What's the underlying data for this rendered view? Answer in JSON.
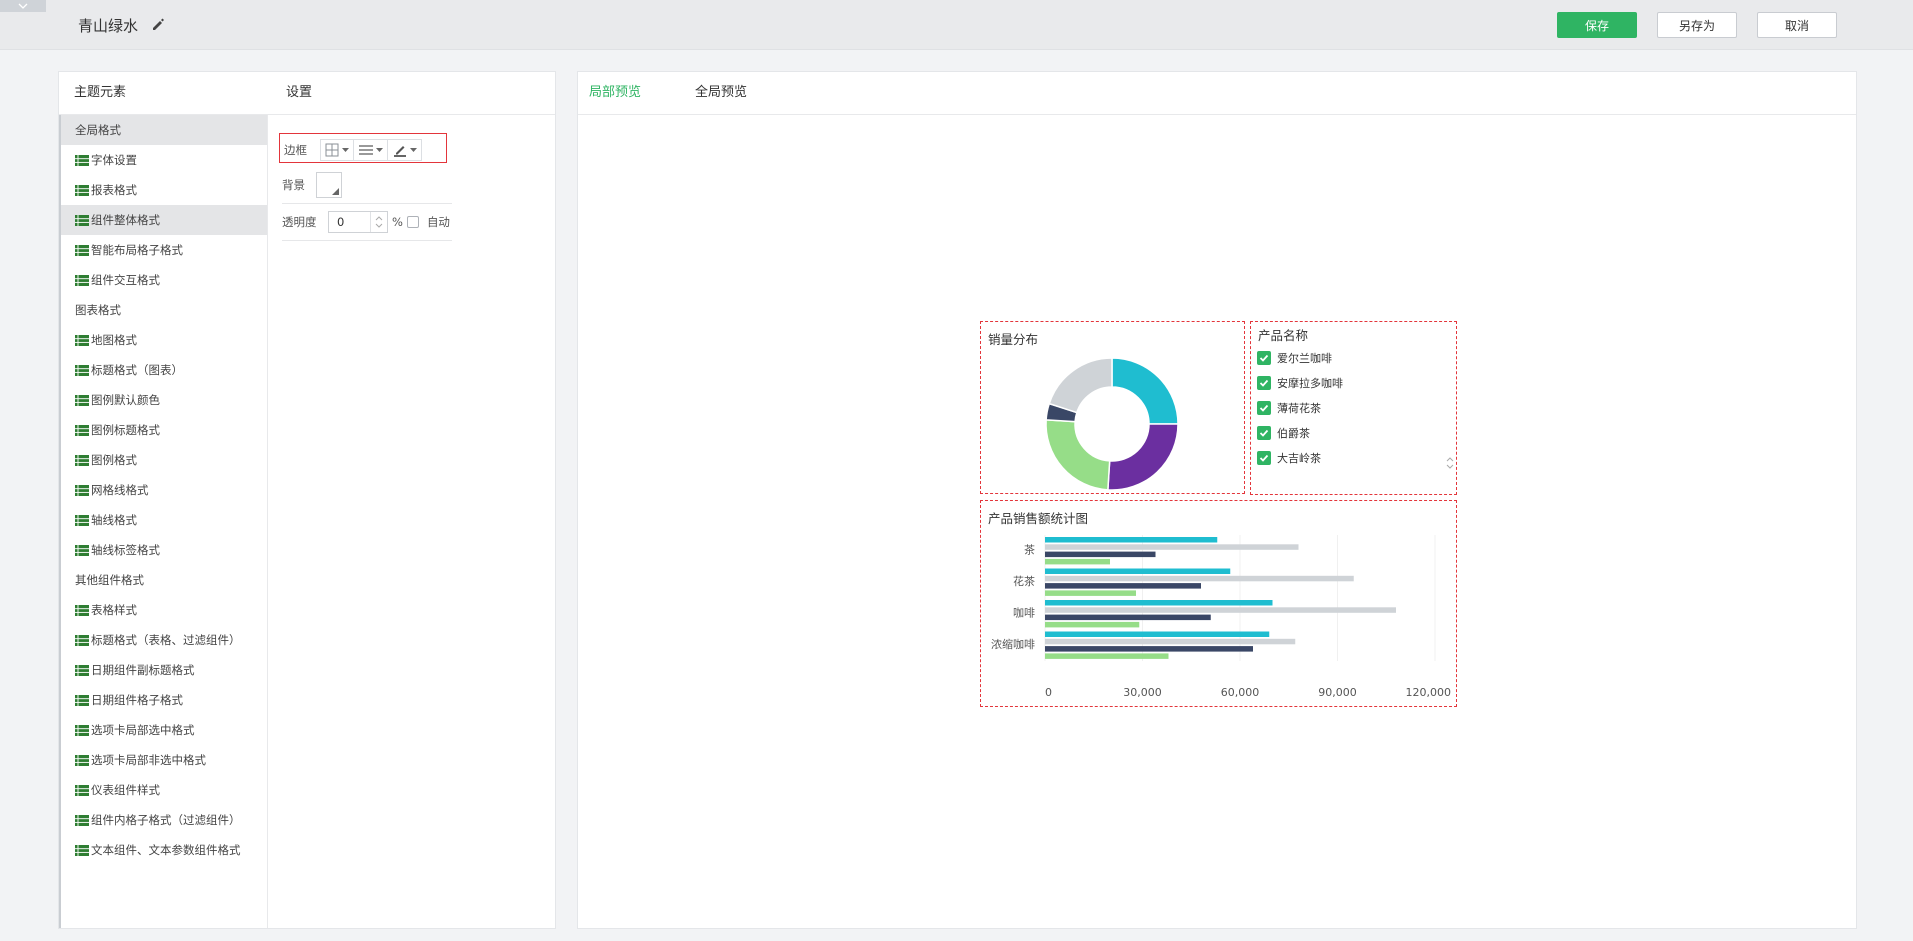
{
  "header": {
    "theme_name": "青山绿水",
    "save_label": "保存",
    "save_as_label": "另存为",
    "cancel_label": "取消"
  },
  "left_panel": {
    "elements_header": "主题元素",
    "settings_header": "设置",
    "tree": [
      {
        "label": "全局格式",
        "type": "group",
        "selected": true
      },
      {
        "label": "字体设置",
        "type": "item"
      },
      {
        "label": "报表格式",
        "type": "item"
      },
      {
        "label": "组件整体格式",
        "type": "item",
        "selected": true
      },
      {
        "label": "智能布局格子格式",
        "type": "item"
      },
      {
        "label": "组件交互格式",
        "type": "item"
      },
      {
        "label": "图表格式",
        "type": "group"
      },
      {
        "label": "地图格式",
        "type": "item"
      },
      {
        "label": "标题格式（图表）",
        "type": "item"
      },
      {
        "label": "图例默认颜色",
        "type": "item"
      },
      {
        "label": "图例标题格式",
        "type": "item"
      },
      {
        "label": "图例格式",
        "type": "item"
      },
      {
        "label": "网格线格式",
        "type": "item"
      },
      {
        "label": "轴线格式",
        "type": "item"
      },
      {
        "label": "轴线标签格式",
        "type": "item"
      },
      {
        "label": "其他组件格式",
        "type": "group"
      },
      {
        "label": "表格样式",
        "type": "item"
      },
      {
        "label": "标题格式（表格、过滤组件）",
        "type": "item"
      },
      {
        "label": "日期组件副标题格式",
        "type": "item"
      },
      {
        "label": "日期组件格子格式",
        "type": "item"
      },
      {
        "label": "选项卡局部选中格式",
        "type": "item"
      },
      {
        "label": "选项卡局部非选中格式",
        "type": "item"
      },
      {
        "label": "仪表组件样式",
        "type": "item"
      },
      {
        "label": "组件内格子格式（过滤组件）",
        "type": "item"
      },
      {
        "label": "文本组件、文本参数组件格式",
        "type": "item"
      }
    ],
    "settings": {
      "border_label": "边框",
      "background_label": "背景",
      "opacity_label": "透明度",
      "opacity_value": "0",
      "percent_sign": "%",
      "auto_label": "自动"
    }
  },
  "preview": {
    "tab_local": "局部预览",
    "tab_global": "全局预览",
    "donut_title": "销量分布",
    "filter_title": "产品名称",
    "filter_items": [
      "爱尔兰咖啡",
      "安摩拉多咖啡",
      "薄荷花茶",
      "伯爵茶",
      "大吉岭茶"
    ],
    "bar_title": "产品销售额统计图"
  },
  "colors": {
    "accent": "#2fb463",
    "series": [
      "#1fbdd0",
      "#cfd3d7",
      "#3a4766",
      "#96dd88"
    ],
    "donut": [
      "#1fbdd0",
      "#6b2fa0",
      "#96dd88",
      "#3a4766",
      "#cfd3d7"
    ]
  },
  "chart_data": [
    {
      "type": "pie",
      "title": "销量分布",
      "values": [
        25,
        26,
        25,
        4,
        20
      ]
    },
    {
      "type": "bar",
      "title": "产品销售额统计图",
      "orientation": "horizontal",
      "categories": [
        "茶",
        "花茶",
        "咖啡",
        "浓缩咖啡"
      ],
      "series": [
        {
          "values": [
            53000,
            57000,
            70000,
            69000
          ]
        },
        {
          "values": [
            78000,
            95000,
            108000,
            77000
          ]
        },
        {
          "values": [
            34000,
            48000,
            51000,
            64000
          ]
        },
        {
          "values": [
            20000,
            28000,
            29000,
            38000
          ]
        }
      ],
      "xlim": [
        0,
        120000
      ],
      "xticks": [
        "0",
        "30,000",
        "60,000",
        "90,000",
        "120,000"
      ]
    }
  ]
}
